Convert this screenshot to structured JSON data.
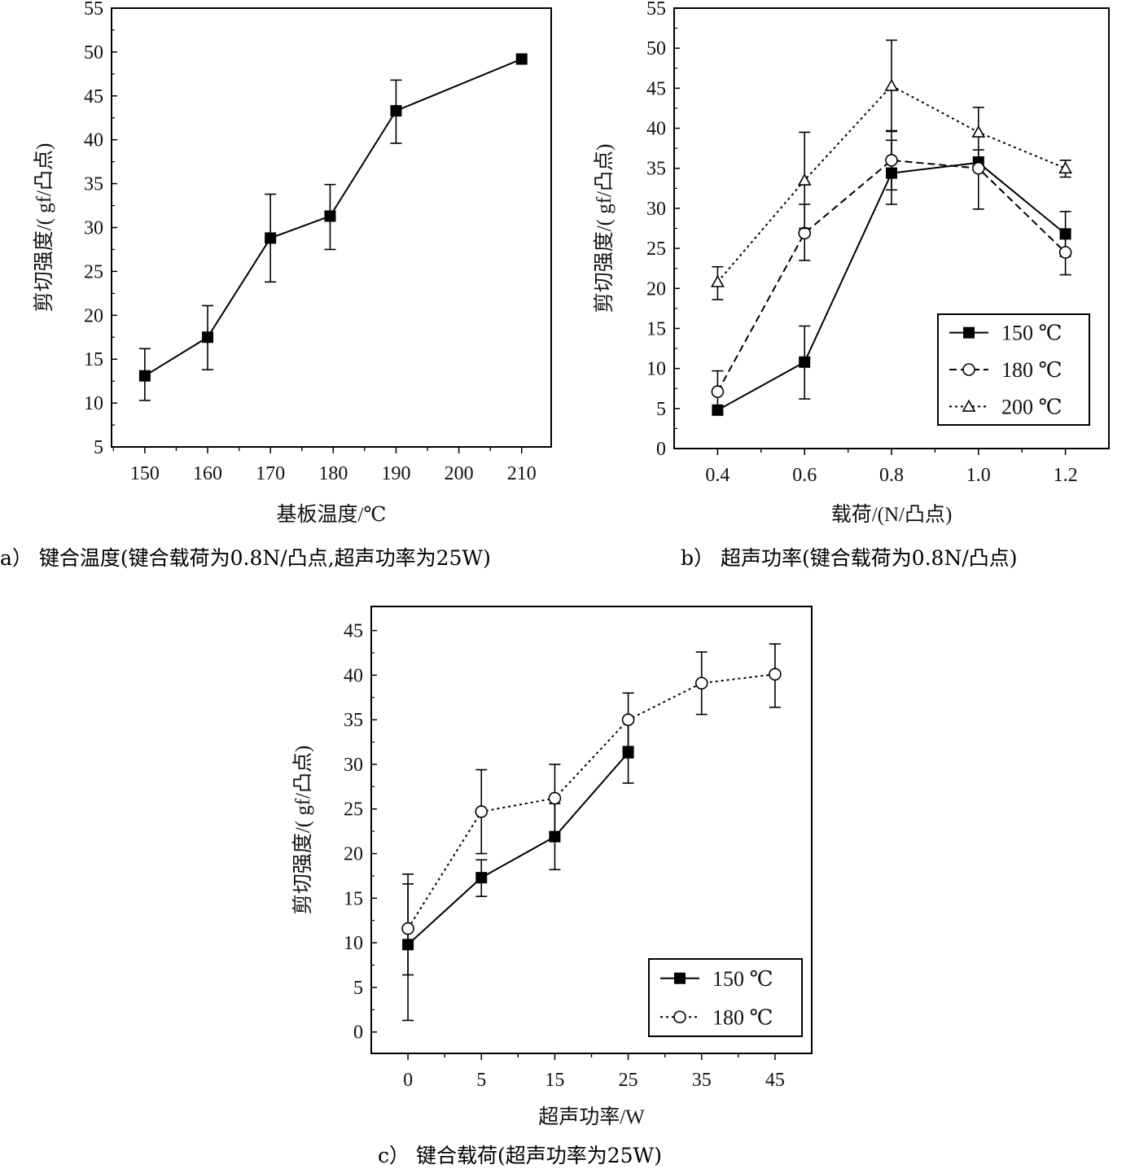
{
  "chart_data": [
    {
      "type": "line",
      "caption": "a） 键合温度(键合载荷为0.8N/凸点,超声功率为25W)",
      "xlabel": "基板温度/℃",
      "ylabel": "剪切强度/( gf/凸点)",
      "xlim": [
        144.7,
        214.7
      ],
      "ylim": [
        5,
        55
      ],
      "xticks": [
        150,
        160,
        170,
        180,
        190,
        200,
        210
      ],
      "yticks": [
        5,
        10,
        15,
        20,
        25,
        30,
        35,
        40,
        45,
        50,
        55
      ],
      "grid": false,
      "series": [
        {
          "x": [
            150,
            160,
            170,
            179.5,
            190,
            210
          ],
          "values": [
            13.1,
            17.5,
            28.8,
            31.3,
            43.3,
            49.2
          ],
          "err_low": [
            10.3,
            13.8,
            23.8,
            27.5,
            39.6,
            null
          ],
          "err_high": [
            16.2,
            21.1,
            33.8,
            34.9,
            46.8,
            null
          ],
          "marker": "square-filled",
          "line": "solid"
        }
      ]
    },
    {
      "type": "line",
      "caption": "b） 超声功率(键合载荷为0.8N/凸点)",
      "xlabel": "载荷/(N/凸点)",
      "ylabel": "剪切强度/( gf/凸点)",
      "xlim": [
        0.3,
        1.3
      ],
      "ylim": [
        0,
        55
      ],
      "xticks": [
        "0.4",
        "0.6",
        "0.8",
        "1.0",
        "1.2"
      ],
      "yticks": [
        0,
        5,
        10,
        15,
        20,
        25,
        30,
        35,
        40,
        45,
        50,
        55
      ],
      "grid": false,
      "legend": "bottom-right",
      "series": [
        {
          "name": "150 ℃",
          "x": [
            0.4,
            0.6,
            0.8,
            1.0,
            1.2
          ],
          "values": [
            4.8,
            10.8,
            34.4,
            35.7,
            26.8
          ],
          "err_low": [
            null,
            6.2,
            30.5,
            35.0,
            24.0
          ],
          "err_high": [
            null,
            15.3,
            39.7,
            36.4,
            29.6
          ],
          "marker": "square-filled",
          "line": "solid"
        },
        {
          "name": "180 ℃",
          "x": [
            0.4,
            0.6,
            0.8,
            1.0,
            1.2
          ],
          "values": [
            7.1,
            26.9,
            36.0,
            35.0,
            24.5
          ],
          "err_low": [
            4.5,
            23.5,
            32.3,
            29.9,
            21.7
          ],
          "err_high": [
            9.7,
            30.5,
            38.5,
            37.3,
            27.3
          ],
          "marker": "circle-open",
          "line": "dashed"
        },
        {
          "name": "200 ℃",
          "x": [
            0.4,
            0.6,
            0.8,
            1.0,
            1.2
          ],
          "values": [
            20.8,
            33.5,
            45.3,
            39.5,
            35.0
          ],
          "err_low": [
            18.6,
            27.5,
            39.6,
            36.4,
            33.9
          ],
          "err_high": [
            22.7,
            39.5,
            51.0,
            42.6,
            36.0
          ],
          "marker": "triangle-open",
          "line": "dotted"
        }
      ]
    },
    {
      "type": "line",
      "caption": "c） 键合载荷(超声功率为25W)",
      "xlabel": "超声功率/W",
      "ylabel": "剪切强度/( gf/凸点)",
      "categories": [
        "0",
        "5",
        "15",
        "25",
        "35",
        "45"
      ],
      "ylim": [
        -2.4,
        47.7
      ],
      "yticks": [
        0,
        5,
        10,
        15,
        20,
        25,
        30,
        35,
        40,
        45
      ],
      "grid": false,
      "legend": "bottom-right",
      "series": [
        {
          "name": "150 ℃",
          "values": [
            9.8,
            17.3,
            21.9,
            31.3,
            null,
            null
          ],
          "err_low": [
            6.4,
            15.2,
            18.2,
            27.9,
            null,
            null
          ],
          "err_high": [
            16.6,
            19.3,
            25.6,
            34.7,
            null,
            null
          ],
          "marker": "square-filled",
          "line": "solid"
        },
        {
          "name": "180 ℃",
          "values": [
            11.6,
            24.7,
            26.2,
            35.0,
            39.1,
            40.1
          ],
          "err_low": [
            1.3,
            20.0,
            22.4,
            32.0,
            35.6,
            36.4
          ],
          "err_high": [
            17.7,
            29.4,
            30.0,
            38.0,
            42.6,
            43.5
          ],
          "marker": "circle-open",
          "line": "dotted"
        }
      ]
    }
  ]
}
